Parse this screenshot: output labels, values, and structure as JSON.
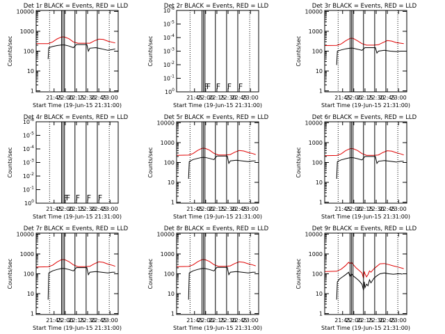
{
  "chart_data": {
    "type": "line",
    "grid_layout": "3x3",
    "x_tick_labels": [
      "21:45",
      "22:00",
      "22:15",
      "22:30",
      "22:45",
      "23:00"
    ],
    "x_tick_minutes": [
      14,
      29,
      44,
      59,
      74,
      89
    ],
    "x_range_minutes": [
      -10,
      100
    ],
    "xlabel": "Start Time (19-Jun-15 21:31:00)",
    "ylabel": "Counts/sec",
    "log_y_labels": [
      "1",
      "10",
      "100",
      "1000",
      "10000"
    ],
    "empty_y_labels": [
      "10^0",
      "10^-1",
      "10^-2",
      "10^-3",
      "10^-4",
      "10^-5",
      "10^-6"
    ],
    "dotted_vlines_minutes": [
      8,
      88
    ],
    "solid_vlines_minutes": [
      24,
      26,
      28,
      42,
      57,
      72
    ],
    "flag_letters": [
      "F",
      "F",
      "F",
      "F",
      "F"
    ],
    "flag_minutes": [
      25,
      28,
      41,
      56,
      71
    ],
    "panels": [
      {
        "title": "Det 1r BLACK = Events, RED = LLD",
        "empty": false,
        "lld": [
          [
            -10,
            240
          ],
          [
            6,
            240
          ],
          [
            12,
            290
          ],
          [
            18,
            410
          ],
          [
            24,
            520
          ],
          [
            28,
            520
          ],
          [
            34,
            420
          ],
          [
            40,
            290
          ],
          [
            46,
            250
          ],
          [
            56,
            250
          ],
          [
            62,
            250
          ],
          [
            68,
            330
          ],
          [
            74,
            400
          ],
          [
            80,
            390
          ],
          [
            86,
            320
          ],
          [
            92,
            280
          ],
          [
            96,
            260
          ]
        ],
        "events": [
          [
            6,
            40
          ],
          [
            7,
            150
          ],
          [
            12,
            170
          ],
          [
            18,
            190
          ],
          [
            24,
            205
          ],
          [
            28,
            205
          ],
          [
            34,
            180
          ],
          [
            40,
            150
          ],
          [
            44,
            215
          ],
          [
            56,
            215
          ],
          [
            58,
            215
          ],
          [
            60,
            100
          ],
          [
            62,
            140
          ],
          [
            70,
            150
          ],
          [
            78,
            130
          ],
          [
            86,
            110
          ],
          [
            92,
            120
          ],
          [
            96,
            130
          ]
        ]
      },
      {
        "title": "Det 2r BLACK = Events, RED = LLD",
        "empty": true,
        "lld": [],
        "events": []
      },
      {
        "title": "Det 3r BLACK = Events, RED = LLD",
        "empty": false,
        "lld": [
          [
            -10,
            190
          ],
          [
            6,
            195
          ],
          [
            12,
            230
          ],
          [
            18,
            330
          ],
          [
            24,
            440
          ],
          [
            28,
            440
          ],
          [
            34,
            330
          ],
          [
            40,
            240
          ],
          [
            46,
            200
          ],
          [
            56,
            200
          ],
          [
            62,
            210
          ],
          [
            68,
            270
          ],
          [
            74,
            340
          ],
          [
            80,
            320
          ],
          [
            86,
            270
          ],
          [
            92,
            250
          ],
          [
            96,
            240
          ]
        ],
        "events": [
          [
            6,
            20
          ],
          [
            7,
            100
          ],
          [
            12,
            115
          ],
          [
            18,
            130
          ],
          [
            24,
            140
          ],
          [
            28,
            140
          ],
          [
            34,
            125
          ],
          [
            40,
            110
          ],
          [
            44,
            150
          ],
          [
            56,
            150
          ],
          [
            58,
            150
          ],
          [
            60,
            80
          ],
          [
            62,
            100
          ],
          [
            70,
            110
          ],
          [
            78,
            100
          ],
          [
            86,
            95
          ],
          [
            92,
            100
          ],
          [
            96,
            100
          ]
        ]
      },
      {
        "title": "Det 4r BLACK = Events, RED = LLD",
        "empty": true,
        "lld": [],
        "events": []
      },
      {
        "title": "Det 5r BLACK = Events, RED = LLD",
        "empty": false,
        "lld": [
          [
            -10,
            230
          ],
          [
            6,
            235
          ],
          [
            12,
            280
          ],
          [
            18,
            400
          ],
          [
            24,
            520
          ],
          [
            28,
            520
          ],
          [
            34,
            420
          ],
          [
            40,
            290
          ],
          [
            46,
            240
          ],
          [
            56,
            240
          ],
          [
            62,
            250
          ],
          [
            68,
            330
          ],
          [
            74,
            400
          ],
          [
            80,
            380
          ],
          [
            86,
            320
          ],
          [
            92,
            280
          ],
          [
            96,
            250
          ]
        ],
        "events": [
          [
            6,
            15
          ],
          [
            7,
            110
          ],
          [
            12,
            140
          ],
          [
            18,
            160
          ],
          [
            24,
            180
          ],
          [
            28,
            180
          ],
          [
            34,
            160
          ],
          [
            40,
            140
          ],
          [
            44,
            210
          ],
          [
            56,
            210
          ],
          [
            58,
            210
          ],
          [
            60,
            90
          ],
          [
            62,
            120
          ],
          [
            70,
            130
          ],
          [
            78,
            120
          ],
          [
            86,
            110
          ],
          [
            92,
            120
          ],
          [
            96,
            120
          ]
        ]
      },
      {
        "title": "Det 6r BLACK = Events, RED = LLD",
        "empty": false,
        "lld": [
          [
            -10,
            220
          ],
          [
            6,
            225
          ],
          [
            12,
            270
          ],
          [
            18,
            390
          ],
          [
            24,
            500
          ],
          [
            28,
            500
          ],
          [
            34,
            400
          ],
          [
            40,
            280
          ],
          [
            46,
            230
          ],
          [
            56,
            230
          ],
          [
            62,
            240
          ],
          [
            68,
            320
          ],
          [
            74,
            390
          ],
          [
            80,
            370
          ],
          [
            86,
            310
          ],
          [
            92,
            270
          ],
          [
            96,
            240
          ]
        ],
        "events": [
          [
            6,
            15
          ],
          [
            7,
            110
          ],
          [
            12,
            135
          ],
          [
            18,
            155
          ],
          [
            24,
            175
          ],
          [
            28,
            175
          ],
          [
            34,
            155
          ],
          [
            40,
            135
          ],
          [
            44,
            200
          ],
          [
            56,
            200
          ],
          [
            58,
            200
          ],
          [
            60,
            90
          ],
          [
            62,
            115
          ],
          [
            70,
            125
          ],
          [
            78,
            115
          ],
          [
            86,
            105
          ],
          [
            92,
            115
          ],
          [
            96,
            115
          ]
        ]
      },
      {
        "title": "Det 7r BLACK = Events, RED = LLD",
        "empty": false,
        "lld": [
          [
            -10,
            220
          ],
          [
            6,
            225
          ],
          [
            12,
            270
          ],
          [
            18,
            390
          ],
          [
            24,
            520
          ],
          [
            28,
            520
          ],
          [
            34,
            410
          ],
          [
            40,
            280
          ],
          [
            46,
            230
          ],
          [
            56,
            230
          ],
          [
            62,
            240
          ],
          [
            68,
            320
          ],
          [
            74,
            400
          ],
          [
            80,
            380
          ],
          [
            86,
            310
          ],
          [
            92,
            270
          ],
          [
            96,
            240
          ]
        ],
        "events": [
          [
            6,
            5
          ],
          [
            7,
            110
          ],
          [
            12,
            140
          ],
          [
            18,
            165
          ],
          [
            24,
            185
          ],
          [
            28,
            185
          ],
          [
            34,
            165
          ],
          [
            40,
            140
          ],
          [
            44,
            205
          ],
          [
            56,
            205
          ],
          [
            58,
            205
          ],
          [
            60,
            90
          ],
          [
            62,
            120
          ],
          [
            70,
            130
          ],
          [
            78,
            120
          ],
          [
            86,
            110
          ],
          [
            92,
            120
          ],
          [
            96,
            120
          ]
        ]
      },
      {
        "title": "Det 8r BLACK = Events, RED = LLD",
        "empty": false,
        "lld": [
          [
            -10,
            230
          ],
          [
            6,
            235
          ],
          [
            12,
            280
          ],
          [
            18,
            400
          ],
          [
            24,
            520
          ],
          [
            28,
            520
          ],
          [
            34,
            420
          ],
          [
            40,
            290
          ],
          [
            46,
            240
          ],
          [
            56,
            240
          ],
          [
            62,
            250
          ],
          [
            68,
            330
          ],
          [
            74,
            400
          ],
          [
            80,
            380
          ],
          [
            86,
            320
          ],
          [
            92,
            280
          ],
          [
            96,
            250
          ]
        ],
        "events": [
          [
            6,
            5
          ],
          [
            7,
            110
          ],
          [
            12,
            140
          ],
          [
            18,
            165
          ],
          [
            24,
            185
          ],
          [
            28,
            185
          ],
          [
            34,
            165
          ],
          [
            40,
            140
          ],
          [
            44,
            210
          ],
          [
            56,
            210
          ],
          [
            58,
            210
          ],
          [
            60,
            90
          ],
          [
            62,
            120
          ],
          [
            70,
            130
          ],
          [
            78,
            120
          ],
          [
            86,
            110
          ],
          [
            92,
            120
          ],
          [
            96,
            120
          ]
        ]
      },
      {
        "title": "Det 9r BLACK = Events, RED = LLD",
        "empty": false,
        "lld": [
          [
            -10,
            130
          ],
          [
            6,
            135
          ],
          [
            12,
            170
          ],
          [
            18,
            260
          ],
          [
            22,
            380
          ],
          [
            24,
            320
          ],
          [
            26,
            380
          ],
          [
            28,
            300
          ],
          [
            32,
            200
          ],
          [
            36,
            150
          ],
          [
            40,
            110
          ],
          [
            42,
            60
          ],
          [
            43,
            130
          ],
          [
            44,
            100
          ],
          [
            46,
            70
          ],
          [
            48,
            90
          ],
          [
            50,
            140
          ],
          [
            52,
            120
          ],
          [
            56,
            180
          ],
          [
            60,
            240
          ],
          [
            64,
            320
          ],
          [
            70,
            330
          ],
          [
            76,
            290
          ],
          [
            82,
            250
          ],
          [
            88,
            220
          ],
          [
            94,
            190
          ],
          [
            96,
            180
          ]
        ],
        "events": [
          [
            6,
            5
          ],
          [
            7,
            40
          ],
          [
            10,
            55
          ],
          [
            14,
            70
          ],
          [
            18,
            90
          ],
          [
            22,
            120
          ],
          [
            24,
            70
          ],
          [
            26,
            100
          ],
          [
            28,
            80
          ],
          [
            32,
            60
          ],
          [
            36,
            45
          ],
          [
            40,
            30
          ],
          [
            42,
            15
          ],
          [
            43,
            40
          ],
          [
            44,
            20
          ],
          [
            46,
            30
          ],
          [
            48,
            25
          ],
          [
            50,
            50
          ],
          [
            52,
            35
          ],
          [
            56,
            60
          ],
          [
            60,
            80
          ],
          [
            64,
            100
          ],
          [
            70,
            110
          ],
          [
            76,
            100
          ],
          [
            82,
            95
          ],
          [
            88,
            100
          ],
          [
            92,
            100
          ],
          [
            94,
            95
          ]
        ]
      }
    ]
  }
}
